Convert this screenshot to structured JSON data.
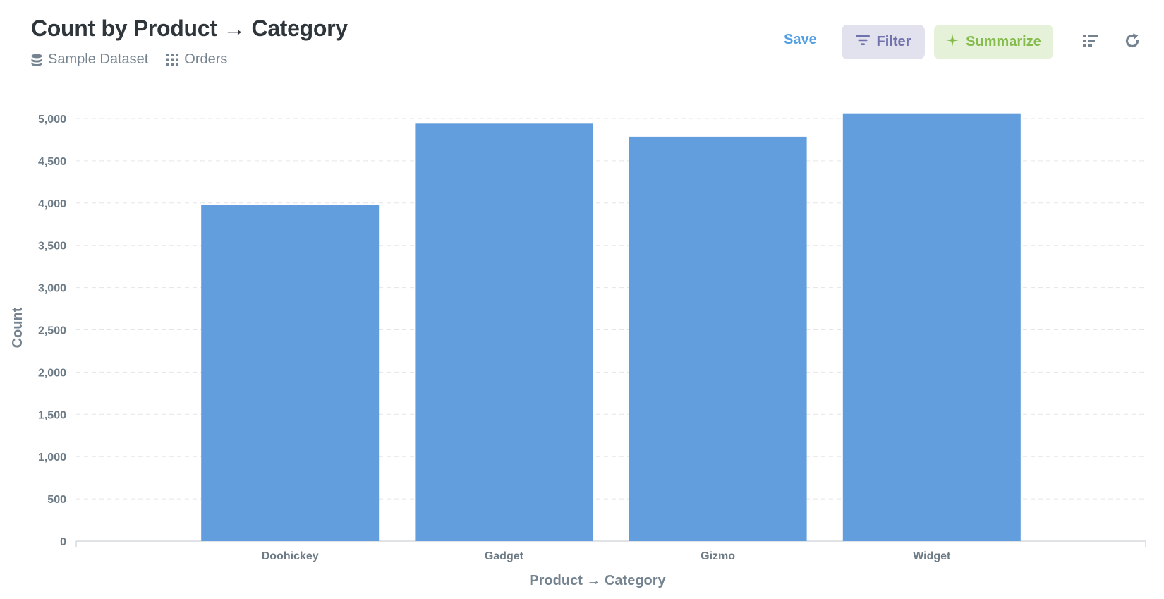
{
  "header": {
    "title": "Count by Product → Category",
    "breadcrumbs": [
      {
        "label": "Sample Dataset",
        "icon": "database-icon"
      },
      {
        "label": "Orders",
        "icon": "grid-icon"
      }
    ],
    "save_label": "Save",
    "filter_label": "Filter",
    "summarize_label": "Summarize"
  },
  "colors": {
    "bar": "#629ede",
    "filter_bg": "#e2e1ee",
    "filter_fg": "#7172ad",
    "summarize_bg": "#e6f1d9",
    "summarize_fg": "#84bb4c",
    "save": "#509ee3"
  },
  "chart_data": {
    "type": "bar",
    "categories": [
      "Doohickey",
      "Gadget",
      "Gizmo",
      "Widget"
    ],
    "values": [
      3976,
      4939,
      4784,
      5061
    ],
    "xlabel": "Product → Category",
    "ylabel": "Count",
    "ylim": [
      0,
      5000
    ],
    "yticks": [
      0,
      500,
      1000,
      1500,
      2000,
      2500,
      3000,
      3500,
      4000,
      4500,
      5000
    ],
    "ytick_labels": [
      "0",
      "500",
      "1,000",
      "1,500",
      "2,000",
      "2,500",
      "3,000",
      "3,500",
      "4,000",
      "4,500",
      "5,000"
    ],
    "grid": true
  }
}
